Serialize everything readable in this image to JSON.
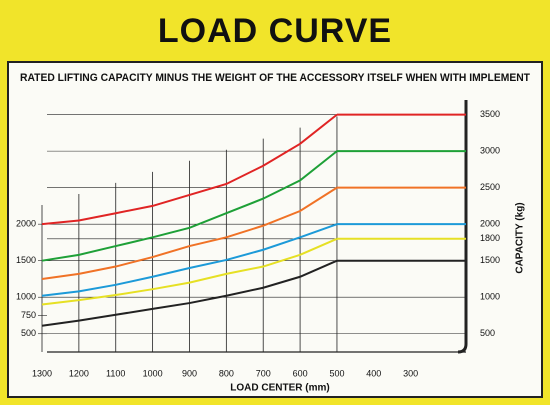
{
  "chart_data": {
    "type": "line",
    "title": "LOAD CURVE",
    "subtitle": "RATED LIFTING CAPACITY MINUS THE WEIGHT OF THE ACCESSORY ITSELF WHEN WITH IMPLEMENT",
    "x_label": "LOAD CENTER (mm)",
    "y_label": "CAPACITY (kg)",
    "x": [
      1300,
      1200,
      1100,
      1000,
      900,
      800,
      700,
      600,
      500
    ],
    "xlim": [
      1300,
      150
    ],
    "xticks": [
      1300,
      1200,
      1100,
      1000,
      900,
      800,
      700,
      600,
      500,
      400,
      300
    ],
    "ylim": [
      250,
      3700
    ],
    "yticks": [
      3500,
      3000,
      2500,
      2000,
      1800,
      1500,
      1000,
      500
    ],
    "y2lim": [
      250,
      3700
    ],
    "y2ticks": [
      2000,
      1500,
      1000,
      750,
      500
    ],
    "grid": true,
    "series": [
      {
        "color": "#e02424",
        "values": [
          2000,
          2050,
          2150,
          2250,
          2400,
          2550,
          2800,
          3100,
          3500
        ]
      },
      {
        "color": "#1ea037",
        "values": [
          1500,
          1580,
          1700,
          1820,
          1950,
          2150,
          2350,
          2600,
          3000
        ]
      },
      {
        "color": "#f07226",
        "values": [
          1250,
          1320,
          1420,
          1550,
          1700,
          1820,
          1980,
          2180,
          2500
        ]
      },
      {
        "color": "#1c9ad8",
        "values": [
          1020,
          1080,
          1170,
          1280,
          1400,
          1510,
          1650,
          1820,
          2000
        ]
      },
      {
        "color": "#e6e024",
        "values": [
          900,
          960,
          1030,
          1110,
          1200,
          1320,
          1420,
          1580,
          1800
        ]
      },
      {
        "color": "#222222",
        "values": [
          610,
          680,
          760,
          840,
          920,
          1020,
          1130,
          1280,
          1500
        ]
      }
    ]
  }
}
